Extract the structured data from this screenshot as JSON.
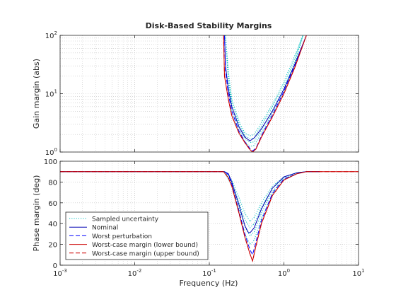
{
  "chart_data": {
    "type": "line",
    "title": "Disk-Based Stability Margins",
    "xlabel": "Frequency (Hz)",
    "xscale": "log",
    "xlim": [
      0.001,
      10
    ],
    "x_ticks": [
      {
        "base": "10",
        "exp": "-3"
      },
      {
        "base": "10",
        "exp": "-2"
      },
      {
        "base": "10",
        "exp": "-1"
      },
      {
        "base": "10",
        "exp": "0"
      },
      {
        "base": "10",
        "exp": "1"
      }
    ],
    "grid": true,
    "colors": {
      "sampled": "#00BFBF",
      "nominal": "#0000B3",
      "worst_perturbation": "#0000FF",
      "lower_bound": "#CC0000",
      "upper_bound": "#CC0000"
    },
    "legend": {
      "placement": "lower-left of bottom panel",
      "entries": [
        {
          "key": "sampled",
          "label": "Sampled uncertainty",
          "style": "dotted"
        },
        {
          "key": "nominal",
          "label": "Nominal",
          "style": "solid"
        },
        {
          "key": "worst_perturbation",
          "label": "Worst perturbation",
          "style": "dashed"
        },
        {
          "key": "lower_bound",
          "label": "Worst-case margin (lower bound)",
          "style": "solid"
        },
        {
          "key": "upper_bound",
          "label": "Worst-case margin (upper bound)",
          "style": "dashed"
        }
      ]
    },
    "panels": [
      {
        "id": "gain",
        "ylabel": "Gain margin (abs)",
        "yscale": "log",
        "ylim": [
          1,
          100
        ],
        "y_ticks": [
          {
            "base": "10",
            "exp": "0"
          },
          {
            "base": "10",
            "exp": "1"
          },
          {
            "base": "10",
            "exp": "2"
          }
        ],
        "series": [
          {
            "key": "sampled",
            "x": [
              0.165,
              0.18,
              0.2,
              0.25,
              0.3,
              0.35,
              0.4,
              0.5,
              0.7,
              1.0,
              1.4,
              1.8
            ],
            "y": [
              100,
              25,
              8,
              3.4,
              2.1,
              1.9,
              2.0,
              3.2,
              6.5,
              16,
              45,
              100
            ]
          },
          {
            "key": "sampled",
            "x": [
              0.165,
              0.18,
              0.2,
              0.25,
              0.3,
              0.35,
              0.4,
              0.5,
              0.7,
              1.0,
              1.4,
              1.8
            ],
            "y": [
              100,
              22,
              7,
              3.0,
              1.9,
              1.7,
              1.75,
              2.8,
              6.0,
              14,
              40,
              100
            ]
          },
          {
            "key": "sampled",
            "x": [
              0.165,
              0.18,
              0.2,
              0.25,
              0.3,
              0.35,
              0.4,
              0.5,
              0.7,
              1.0,
              1.4,
              1.8
            ],
            "y": [
              100,
              19,
              6,
              2.6,
              1.7,
              1.45,
              1.5,
              2.4,
              5.2,
              12,
              35,
              100
            ]
          },
          {
            "key": "sampled",
            "x": [
              0.165,
              0.18,
              0.2,
              0.25,
              0.3,
              0.35,
              0.4,
              0.5,
              0.7,
              1.0,
              1.4,
              1.8
            ],
            "y": [
              100,
              16,
              5,
              2.2,
              1.5,
              1.25,
              1.3,
              2.1,
              4.6,
              11,
              32,
              100
            ]
          },
          {
            "key": "nominal",
            "x": [
              0.16,
              0.165,
              0.18,
              0.2,
              0.25,
              0.3,
              0.35,
              0.4,
              0.5,
              0.7,
              1.0,
              1.4,
              2.0
            ],
            "y": [
              100,
              30,
              12,
              6,
              2.7,
              1.8,
              1.55,
              1.75,
              2.5,
              5,
              12,
              32,
              100
            ]
          },
          {
            "key": "worst_perturbation",
            "x": [
              0.16,
              0.165,
              0.18,
              0.2,
              0.25,
              0.3,
              0.35,
              0.38,
              0.42,
              0.5,
              0.7,
              1.0,
              1.4,
              2.0
            ],
            "y": [
              100,
              25,
              10,
              5,
              2.3,
              1.5,
              1.15,
              1.05,
              1.15,
              1.9,
              4.3,
              11,
              30,
              100
            ]
          },
          {
            "key": "lower_bound",
            "x": [
              0.155,
              0.16,
              0.18,
              0.2,
              0.25,
              0.3,
              0.35,
              0.38,
              0.42,
              0.5,
              0.7,
              1.0,
              1.4,
              2.0
            ],
            "y": [
              100,
              20,
              8,
              4.2,
              2.1,
              1.45,
              1.1,
              1.0,
              1.12,
              1.8,
              4.0,
              10,
              28,
              100
            ]
          },
          {
            "key": "upper_bound",
            "x": [
              0.155,
              0.16,
              0.18,
              0.2,
              0.25,
              0.3,
              0.35,
              0.38,
              0.42,
              0.5,
              0.7,
              1.0,
              1.4,
              2.0
            ],
            "y": [
              100,
              20,
              8,
              4.2,
              2.1,
              1.45,
              1.1,
              1.0,
              1.12,
              1.8,
              4.0,
              10,
              28,
              100
            ]
          }
        ]
      },
      {
        "id": "phase",
        "ylabel": "Phase margin (deg)",
        "yscale": "linear",
        "ylim": [
          0,
          100
        ],
        "y_ticks": [
          {
            "base": "0",
            "exp": ""
          },
          {
            "base": "20",
            "exp": ""
          },
          {
            "base": "40",
            "exp": ""
          },
          {
            "base": "60",
            "exp": ""
          },
          {
            "base": "80",
            "exp": ""
          },
          {
            "base": "100",
            "exp": ""
          }
        ],
        "series": [
          {
            "key": "sampled",
            "x": [
              0.001,
              0.16,
              0.2,
              0.25,
              0.3,
              0.35,
              0.4,
              0.5,
              0.7,
              1.0,
              1.5,
              2.0,
              3.0
            ],
            "y": [
              90,
              90,
              82,
              65,
              50,
              42,
              46,
              60,
              76,
              85,
              89,
              90,
              90
            ]
          },
          {
            "key": "sampled",
            "x": [
              0.001,
              0.16,
              0.2,
              0.25,
              0.3,
              0.35,
              0.4,
              0.5,
              0.7,
              1.0,
              1.5,
              2.0,
              3.0
            ],
            "y": [
              90,
              90,
              80,
              60,
              44,
              36,
              40,
              56,
              74,
              84,
              89,
              90,
              90
            ]
          },
          {
            "key": "sampled",
            "x": [
              0.001,
              0.16,
              0.2,
              0.25,
              0.3,
              0.35,
              0.4,
              0.5,
              0.7,
              1.0,
              1.5,
              2.0,
              3.0
            ],
            "y": [
              90,
              90,
              78,
              55,
              37,
              28,
              32,
              50,
              71,
              83,
              88,
              90,
              90
            ]
          },
          {
            "key": "sampled",
            "x": [
              0.001,
              0.16,
              0.2,
              0.25,
              0.3,
              0.35,
              0.4,
              0.5,
              0.7,
              1.0,
              1.5,
              2.0,
              3.0
            ],
            "y": [
              90,
              90,
              76,
              50,
              30,
              20,
              24,
              45,
              68,
              82,
              88,
              90,
              90
            ]
          },
          {
            "key": "nominal",
            "x": [
              0.001,
              0.16,
              0.18,
              0.2,
              0.25,
              0.3,
              0.33,
              0.35,
              0.4,
              0.5,
              0.7,
              1.0,
              1.5,
              2.0,
              3.0
            ],
            "y": [
              90,
              90,
              88,
              80,
              58,
              38,
              32,
              31,
              36,
              54,
              74,
              85,
              89,
              90,
              90
            ]
          },
          {
            "key": "worst_perturbation",
            "x": [
              0.001,
              0.16,
              0.18,
              0.2,
              0.25,
              0.3,
              0.35,
              0.38,
              0.42,
              0.5,
              0.7,
              1.0,
              1.5,
              2.0,
              3.0
            ],
            "y": [
              90,
              90,
              87,
              78,
              52,
              30,
              15,
              10,
              22,
              43,
              69,
              83,
              88,
              90,
              90
            ]
          },
          {
            "key": "lower_bound",
            "x": [
              0.001,
              0.155,
              0.18,
              0.2,
              0.25,
              0.3,
              0.35,
              0.38,
              0.42,
              0.5,
              0.7,
              1.0,
              1.5,
              2.0,
              3.0,
              10
            ],
            "y": [
              90,
              90,
              84,
              76,
              50,
              27,
              11,
              4,
              18,
              40,
              67,
              82,
              88,
              90,
              90,
              90
            ]
          },
          {
            "key": "upper_bound",
            "x": [
              0.001,
              0.155,
              0.18,
              0.2,
              0.25,
              0.3,
              0.35,
              0.38,
              0.42,
              0.5,
              0.7,
              1.0,
              1.5,
              2.0,
              3.0,
              10
            ],
            "y": [
              90,
              90,
              84,
              76,
              50,
              27,
              11,
              4,
              18,
              40,
              67,
              82,
              88,
              90,
              90,
              90
            ]
          }
        ]
      }
    ]
  }
}
